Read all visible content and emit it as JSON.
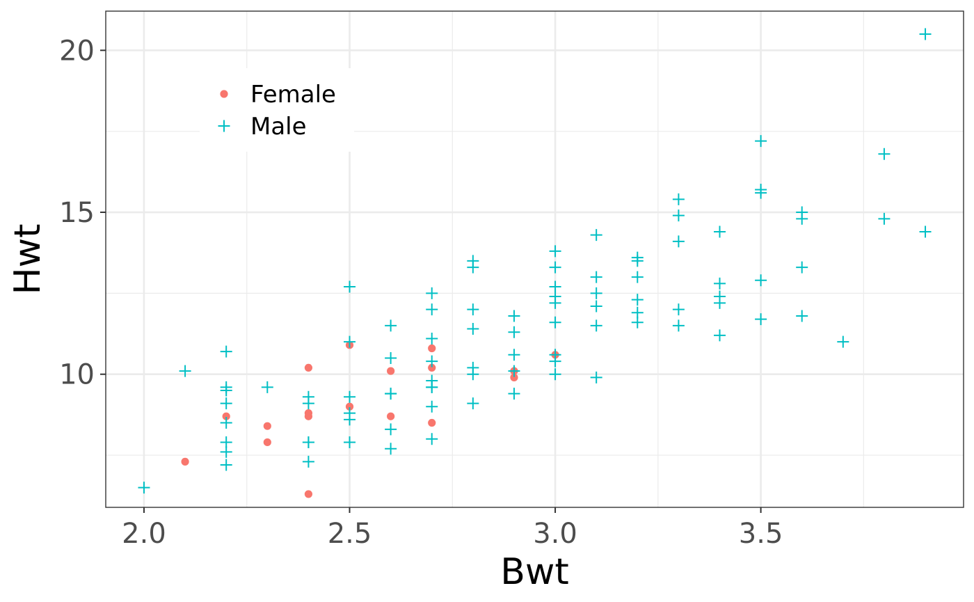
{
  "chart_data": {
    "type": "scatter",
    "title": "",
    "xlabel": "Bwt",
    "ylabel": "Hwt",
    "xlim": [
      1.907,
      3.993
    ],
    "ylim": [
      5.89,
      21.21
    ],
    "x_ticks": [
      2.0,
      2.5,
      3.0,
      3.5
    ],
    "x_tick_labels": [
      "2.0",
      "2.5",
      "3.0",
      "3.5"
    ],
    "y_ticks": [
      10,
      15,
      20
    ],
    "y_tick_labels": [
      "10",
      "15",
      "20"
    ],
    "x_minor_ticks": [
      2.25,
      2.75,
      3.25,
      3.75
    ],
    "y_minor_ticks": [
      7.5,
      12.5,
      17.5
    ],
    "grid": true,
    "legend": {
      "position": "top-left inside",
      "entries": [
        "Female",
        "Male"
      ]
    },
    "colors": {
      "Female": "#F8766D",
      "Male": "#00BFC4",
      "grid": "#ebebeb",
      "panel_border": "#333333"
    },
    "series": [
      {
        "name": "Female",
        "marker": "circle",
        "points": [
          [
            2.1,
            7.3
          ],
          [
            2.2,
            8.7
          ],
          [
            2.3,
            8.4
          ],
          [
            2.3,
            7.9
          ],
          [
            2.4,
            10.2
          ],
          [
            2.4,
            8.8
          ],
          [
            2.4,
            8.7
          ],
          [
            2.4,
            6.3
          ],
          [
            2.5,
            10.9
          ],
          [
            2.5,
            9.0
          ],
          [
            2.6,
            10.1
          ],
          [
            2.6,
            8.7
          ],
          [
            2.7,
            10.8
          ],
          [
            2.7,
            10.2
          ],
          [
            2.7,
            8.5
          ],
          [
            2.9,
            10.1
          ],
          [
            2.9,
            9.9
          ],
          [
            3.0,
            10.6
          ]
        ]
      },
      {
        "name": "Male",
        "marker": "plus",
        "points": [
          [
            2.0,
            6.5
          ],
          [
            2.1,
            10.1
          ],
          [
            2.2,
            10.7
          ],
          [
            2.2,
            9.6
          ],
          [
            2.2,
            9.5
          ],
          [
            2.2,
            9.1
          ],
          [
            2.2,
            8.5
          ],
          [
            2.2,
            7.9
          ],
          [
            2.2,
            7.6
          ],
          [
            2.2,
            7.2
          ],
          [
            2.3,
            9.6
          ],
          [
            2.4,
            9.3
          ],
          [
            2.4,
            9.1
          ],
          [
            2.4,
            7.9
          ],
          [
            2.4,
            7.9
          ],
          [
            2.4,
            7.3
          ],
          [
            2.5,
            12.7
          ],
          [
            2.5,
            12.7
          ],
          [
            2.5,
            11.0
          ],
          [
            2.5,
            9.3
          ],
          [
            2.5,
            8.8
          ],
          [
            2.5,
            8.6
          ],
          [
            2.5,
            7.9
          ],
          [
            2.6,
            11.5
          ],
          [
            2.6,
            10.5
          ],
          [
            2.6,
            9.4
          ],
          [
            2.6,
            9.4
          ],
          [
            2.6,
            8.3
          ],
          [
            2.6,
            7.7
          ],
          [
            2.7,
            12.5
          ],
          [
            2.7,
            12.0
          ],
          [
            2.7,
            11.1
          ],
          [
            2.7,
            10.4
          ],
          [
            2.7,
            9.8
          ],
          [
            2.7,
            9.6
          ],
          [
            2.7,
            9.6
          ],
          [
            2.7,
            9.0
          ],
          [
            2.7,
            8.0
          ],
          [
            2.8,
            13.5
          ],
          [
            2.8,
            13.3
          ],
          [
            2.8,
            12.0
          ],
          [
            2.8,
            11.4
          ],
          [
            2.8,
            10.2
          ],
          [
            2.8,
            10.0
          ],
          [
            2.8,
            9.1
          ],
          [
            2.9,
            11.8
          ],
          [
            2.9,
            11.3
          ],
          [
            2.9,
            10.6
          ],
          [
            2.9,
            10.1
          ],
          [
            2.9,
            9.4
          ],
          [
            3.0,
            13.8
          ],
          [
            3.0,
            13.3
          ],
          [
            3.0,
            12.7
          ],
          [
            3.0,
            12.4
          ],
          [
            3.0,
            12.2
          ],
          [
            3.0,
            11.6
          ],
          [
            3.0,
            10.6
          ],
          [
            3.0,
            10.4
          ],
          [
            3.0,
            10.0
          ],
          [
            3.1,
            14.3
          ],
          [
            3.1,
            13.0
          ],
          [
            3.1,
            12.5
          ],
          [
            3.1,
            12.1
          ],
          [
            3.1,
            11.5
          ],
          [
            3.1,
            9.9
          ],
          [
            3.2,
            13.6
          ],
          [
            3.2,
            13.5
          ],
          [
            3.2,
            13.0
          ],
          [
            3.2,
            12.3
          ],
          [
            3.2,
            11.9
          ],
          [
            3.2,
            11.6
          ],
          [
            3.3,
            15.4
          ],
          [
            3.3,
            14.9
          ],
          [
            3.3,
            14.1
          ],
          [
            3.3,
            12.0
          ],
          [
            3.3,
            11.5
          ],
          [
            3.4,
            14.4
          ],
          [
            3.4,
            12.8
          ],
          [
            3.4,
            12.4
          ],
          [
            3.4,
            12.2
          ],
          [
            3.4,
            11.2
          ],
          [
            3.5,
            17.2
          ],
          [
            3.5,
            15.7
          ],
          [
            3.5,
            15.6
          ],
          [
            3.5,
            12.9
          ],
          [
            3.5,
            11.7
          ],
          [
            3.6,
            15.0
          ],
          [
            3.6,
            14.8
          ],
          [
            3.6,
            13.3
          ],
          [
            3.6,
            11.8
          ],
          [
            3.7,
            11.0
          ],
          [
            3.8,
            16.8
          ],
          [
            3.8,
            14.8
          ],
          [
            3.9,
            20.5
          ],
          [
            3.9,
            14.4
          ]
        ]
      }
    ]
  }
}
